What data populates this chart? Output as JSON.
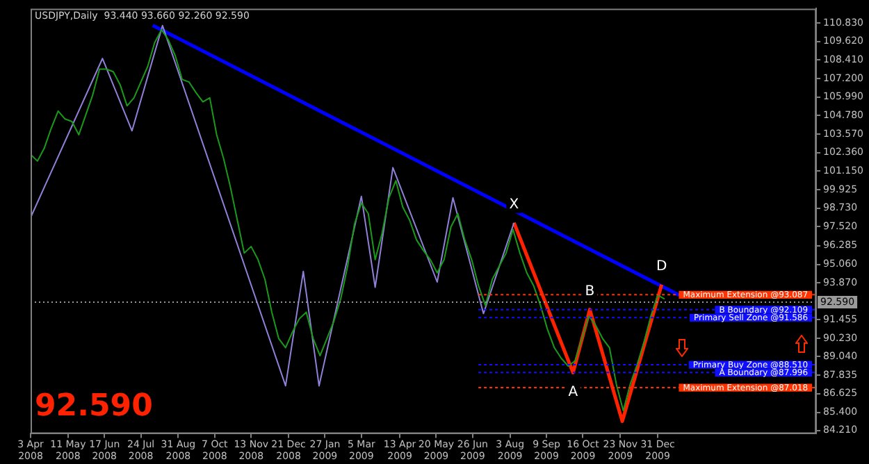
{
  "chart_data": {
    "type": "line",
    "title": "USDJPY,Daily  93.440 93.660 92.260 92.590",
    "xlim": [
      "2008-04-03",
      "2010-06-10"
    ],
    "xticks": [
      {
        "value": "2008-04-03",
        "label": "3 Apr 2008"
      },
      {
        "value": "2008-05-11",
        "label": "11 May 2008"
      },
      {
        "value": "2008-06-17",
        "label": "17 Jun 2008"
      },
      {
        "value": "2008-07-24",
        "label": "24 Jul 2008"
      },
      {
        "value": "2008-08-31",
        "label": "31 Aug 2008"
      },
      {
        "value": "2008-10-07",
        "label": "7 Oct 2008"
      },
      {
        "value": "2008-11-13",
        "label": "13 Nov 2008"
      },
      {
        "value": "2008-12-21",
        "label": "21 Dec 2008"
      },
      {
        "value": "2009-01-27",
        "label": "27 Jan 2009"
      },
      {
        "value": "2009-03-05",
        "label": "5 Mar 2009"
      },
      {
        "value": "2009-04-13",
        "label": "13 Apr 2009"
      },
      {
        "value": "2009-05-20",
        "label": "20 May 2009"
      },
      {
        "value": "2009-06-26",
        "label": "26 Jun 2009"
      },
      {
        "value": "2009-08-03",
        "label": "3 Aug 2009"
      },
      {
        "value": "2009-09-09",
        "label": "9 Sep 2009"
      },
      {
        "value": "2009-10-16",
        "label": "16 Oct 2009"
      },
      {
        "value": "2009-11-23",
        "label": "23 Nov 2009"
      },
      {
        "value": "2009-12-31",
        "label": "31 Dec 2009"
      }
    ],
    "ylim": [
      84.0,
      111.77
    ],
    "yticks": [
      {
        "value": 84.21,
        "label": "84.210"
      },
      {
        "value": 85.4,
        "label": "85.400"
      },
      {
        "value": 86.625,
        "label": "86.625"
      },
      {
        "value": 87.835,
        "label": "87.835"
      },
      {
        "value": 89.04,
        "label": "89.040"
      },
      {
        "value": 90.23,
        "label": "90.230"
      },
      {
        "value": 91.455,
        "label": "91.455"
      },
      {
        "value": 93.87,
        "label": "93.870"
      },
      {
        "value": 95.06,
        "label": "95.060"
      },
      {
        "value": 96.285,
        "label": "96.285"
      },
      {
        "value": 97.52,
        "label": "97.520"
      },
      {
        "value": 98.73,
        "label": "98.730"
      },
      {
        "value": 99.925,
        "label": "99.925"
      },
      {
        "value": 101.15,
        "label": "101.150"
      },
      {
        "value": 102.36,
        "label": "102.360"
      },
      {
        "value": 103.57,
        "label": "103.570"
      },
      {
        "value": 104.78,
        "label": "104.780"
      },
      {
        "value": 105.99,
        "label": "105.990"
      },
      {
        "value": 107.2,
        "label": "107.200"
      },
      {
        "value": 108.41,
        "label": "108.410"
      },
      {
        "value": 109.62,
        "label": "109.620"
      },
      {
        "value": 110.83,
        "label": "110.830"
      }
    ],
    "series": [
      {
        "color": "#1a9a1a",
        "x": [
          "2008-04-03",
          "2008-04-10",
          "2008-04-17",
          "2008-04-24",
          "2008-05-01",
          "2008-05-08",
          "2008-05-15",
          "2008-05-22",
          "2008-05-29",
          "2008-06-05",
          "2008-06-12",
          "2008-06-19",
          "2008-06-26",
          "2008-07-03",
          "2008-07-10",
          "2008-07-17",
          "2008-07-24",
          "2008-07-31",
          "2008-08-07",
          "2008-08-14",
          "2008-08-21",
          "2008-08-28",
          "2008-09-04",
          "2008-09-11",
          "2008-09-18",
          "2008-09-25",
          "2008-10-02",
          "2008-10-09",
          "2008-10-16",
          "2008-10-23",
          "2008-10-30",
          "2008-11-06",
          "2008-11-13",
          "2008-11-20",
          "2008-11-27",
          "2008-12-04",
          "2008-12-11",
          "2008-12-18",
          "2008-12-25",
          "2009-01-01",
          "2009-01-08",
          "2009-01-15",
          "2009-01-22",
          "2009-01-29",
          "2009-02-05",
          "2009-02-12",
          "2009-02-19",
          "2009-02-26",
          "2009-03-05",
          "2009-03-12",
          "2009-03-19",
          "2009-03-26",
          "2009-04-02",
          "2009-04-09",
          "2009-04-16",
          "2009-04-23",
          "2009-04-30",
          "2009-05-07",
          "2009-05-14",
          "2009-05-21",
          "2009-05-28",
          "2009-06-04",
          "2009-06-11",
          "2009-06-18",
          "2009-06-25",
          "2009-07-02",
          "2009-07-09",
          "2009-07-16",
          "2009-07-23",
          "2009-07-30",
          "2009-08-06",
          "2009-08-13",
          "2009-08-20",
          "2009-08-27",
          "2009-09-03",
          "2009-09-10",
          "2009-09-17",
          "2009-09-24",
          "2009-10-01",
          "2009-10-08",
          "2009-10-15",
          "2009-10-22",
          "2009-10-29",
          "2009-11-05",
          "2009-11-12",
          "2009-11-19",
          "2009-11-26",
          "2009-12-03",
          "2009-12-10",
          "2009-12-17",
          "2009-12-24",
          "2009-12-31",
          "2010-01-07"
        ],
        "values": [
          102.24,
          101.81,
          102.67,
          103.96,
          105.08,
          104.56,
          104.39,
          103.53,
          104.82,
          106.11,
          107.82,
          107.82,
          107.65,
          106.79,
          105.42,
          105.94,
          106.97,
          108.0,
          109.54,
          110.4,
          109.71,
          108.68,
          107.14,
          106.97,
          106.28,
          105.68,
          105.94,
          103.53,
          101.99,
          100.1,
          97.95,
          95.8,
          96.23,
          95.37,
          94.09,
          91.94,
          90.22,
          89.62,
          90.65,
          91.51,
          91.94,
          90.22,
          89.1,
          90.22,
          91.34,
          92.8,
          94.94,
          97.69,
          99.07,
          98.38,
          95.37,
          97.09,
          99.41,
          100.53,
          98.81,
          97.95,
          96.66,
          95.97,
          95.37,
          94.51,
          95.37,
          97.52,
          98.38,
          96.66,
          95.37,
          93.66,
          92.37,
          94.09,
          94.94,
          95.8,
          97.35,
          95.8,
          94.51,
          93.66,
          92.37,
          90.82,
          89.62,
          88.93,
          88.42,
          88.76,
          90.22,
          91.68,
          91.08,
          90.22,
          89.62,
          87.22,
          85.5,
          87.22,
          88.5,
          89.96,
          91.68,
          93.05,
          92.8
        ]
      },
      {
        "color": "#9080d8",
        "x": [
          "2008-04-03",
          "2008-06-15",
          "2008-07-15",
          "2008-08-15",
          "2008-12-18",
          "2009-01-05",
          "2009-01-21",
          "2009-03-05",
          "2009-03-19",
          "2009-04-06",
          "2009-05-21",
          "2009-06-06",
          "2009-07-07",
          "2009-08-07"
        ],
        "values": [
          98.12,
          108.51,
          103.79,
          110.66,
          87.13,
          94.6,
          87.13,
          99.5,
          93.57,
          101.38,
          93.91,
          99.41,
          91.85,
          97.78
        ]
      },
      {
        "color": "#ff2200",
        "x": [
          "2009-08-07",
          "2009-10-06",
          "2009-10-23",
          "2009-11-25",
          "2010-01-04"
        ],
        "values": [
          97.78,
          87.99,
          92.11,
          84.81,
          93.74
        ]
      },
      {
        "color": "#0000ff",
        "x": [
          "2008-08-05",
          "2010-01-22"
        ],
        "values": [
          110.68,
          93.05
        ]
      }
    ],
    "ref_lines": [
      {
        "axis": "y",
        "value": 92.59,
        "label": "92.590",
        "color": "#9a9a9a",
        "line_style": "dashed"
      },
      {
        "axis": "y",
        "value": 93.087,
        "label": "Maximum Extension @93.087",
        "color": "#ff3300",
        "line_style": "dotted"
      },
      {
        "axis": "y",
        "value": 92.109,
        "label": "B Boundary @92.109",
        "color": "#1010ff",
        "line_style": "dotted"
      },
      {
        "axis": "y",
        "value": 91.586,
        "label": "Primary Sell Zone @91.586",
        "color": "#1010ff",
        "line_style": "dotted"
      },
      {
        "axis": "y",
        "value": 88.51,
        "label": "Primary Buy Zone @88.510",
        "color": "#1010ff",
        "line_style": "dotted"
      },
      {
        "axis": "y",
        "value": 87.996,
        "label": "A Boundary @87.996",
        "color": "#1010ff",
        "line_style": "dotted"
      },
      {
        "axis": "y",
        "value": 87.018,
        "label": "Maximum Extension @87.018",
        "color": "#ff3300",
        "line_style": "dotted"
      }
    ],
    "annotations": [
      "92.590",
      {
        "text": "X",
        "x": "2009-08-07",
        "y": 97.78
      },
      {
        "text": "A",
        "x": "2009-10-06",
        "y": 87.99
      },
      {
        "text": "B",
        "x": "2009-10-23",
        "y": 92.11
      },
      {
        "text": "D",
        "x": "2010-01-04",
        "y": 93.74
      }
    ],
    "grid": false,
    "legend": false
  }
}
